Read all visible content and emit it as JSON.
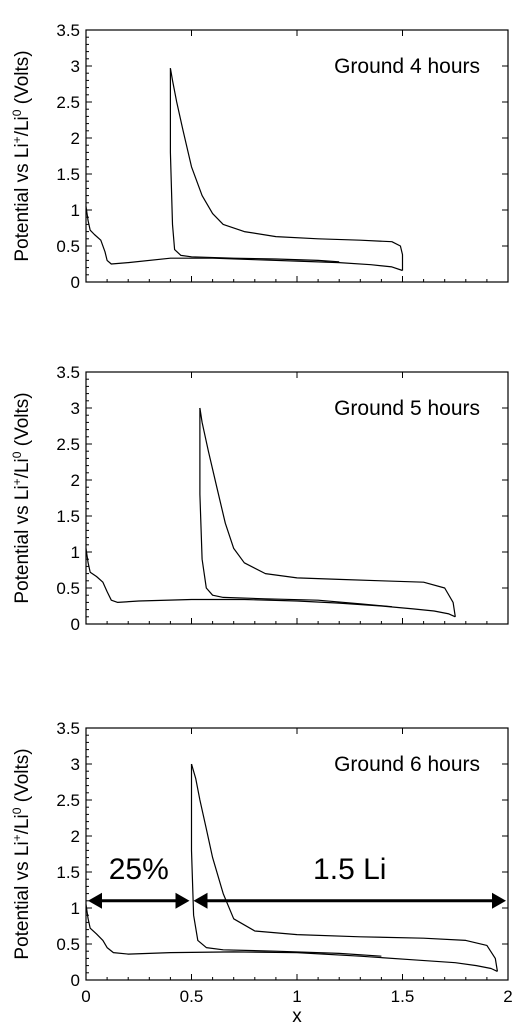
{
  "chart_data": [
    {
      "type": "line",
      "title": "Ground 4 hours",
      "ylabel_parts": {
        "base1": "Potential vs  Li",
        "sup1": "+",
        "mid": "/Li",
        "sup2": "0",
        "end": "  (Volts)"
      },
      "xlim": [
        0,
        2
      ],
      "ylim": [
        0,
        3.5
      ],
      "xticks": [
        0,
        0.5,
        1,
        1.5,
        2
      ],
      "yticks": [
        "0",
        "0.5",
        "1",
        "1.5",
        "2",
        "2.5",
        "3",
        "3.5"
      ],
      "ytick_values": [
        0,
        0.5,
        1,
        1.5,
        2,
        2.5,
        3,
        3.5
      ],
      "series": [
        {
          "points": [
            [
              0,
              1.05
            ],
            [
              0.01,
              0.85
            ],
            [
              0.02,
              0.72
            ],
            [
              0.04,
              0.66
            ],
            [
              0.07,
              0.58
            ],
            [
              0.09,
              0.42
            ],
            [
              0.1,
              0.3
            ],
            [
              0.12,
              0.25
            ],
            [
              0.2,
              0.27
            ],
            [
              0.4,
              0.33
            ],
            [
              0.6,
              0.33
            ],
            [
              0.8,
              0.31
            ],
            [
              1.0,
              0.29
            ],
            [
              1.2,
              0.27
            ],
            [
              1.35,
              0.24
            ],
            [
              1.45,
              0.21
            ],
            [
              1.5,
              0.16
            ]
          ]
        },
        {
          "points": [
            [
              1.5,
              0.16
            ],
            [
              1.5,
              0.38
            ],
            [
              1.49,
              0.5
            ],
            [
              1.45,
              0.56
            ],
            [
              1.3,
              0.58
            ],
            [
              1.1,
              0.6
            ],
            [
              0.9,
              0.63
            ],
            [
              0.75,
              0.7
            ],
            [
              0.65,
              0.8
            ],
            [
              0.6,
              0.95
            ],
            [
              0.55,
              1.2
            ],
            [
              0.5,
              1.6
            ],
            [
              0.46,
              2.1
            ],
            [
              0.43,
              2.5
            ],
            [
              0.41,
              2.8
            ],
            [
              0.4,
              2.97
            ]
          ]
        },
        {
          "points": [
            [
              0.4,
              2.97
            ],
            [
              0.4,
              1.8
            ],
            [
              0.41,
              0.8
            ],
            [
              0.42,
              0.45
            ],
            [
              0.45,
              0.37
            ],
            [
              0.5,
              0.35
            ],
            [
              0.7,
              0.33
            ],
            [
              0.9,
              0.32
            ],
            [
              1.1,
              0.3
            ],
            [
              1.2,
              0.28
            ]
          ]
        }
      ]
    },
    {
      "type": "line",
      "title": "Ground 5 hours",
      "ylabel_parts": {
        "base1": "Potential vs  Li",
        "sup1": "+",
        "mid": "/Li",
        "sup2": "0",
        "end": "  (Volts)"
      },
      "xlim": [
        0,
        2
      ],
      "ylim": [
        0,
        3.5
      ],
      "xticks": [
        0,
        0.5,
        1,
        1.5,
        2
      ],
      "yticks": [
        "0",
        "0.5",
        "1",
        "1.5",
        "2",
        "2.5",
        "3",
        "3.5"
      ],
      "ytick_values": [
        0,
        0.5,
        1,
        1.5,
        2,
        2.5,
        3,
        3.5
      ],
      "series": [
        {
          "points": [
            [
              0,
              1.05
            ],
            [
              0.01,
              0.85
            ],
            [
              0.02,
              0.72
            ],
            [
              0.05,
              0.66
            ],
            [
              0.08,
              0.58
            ],
            [
              0.1,
              0.45
            ],
            [
              0.12,
              0.33
            ],
            [
              0.15,
              0.3
            ],
            [
              0.25,
              0.32
            ],
            [
              0.5,
              0.34
            ],
            [
              0.75,
              0.34
            ],
            [
              1.0,
              0.32
            ],
            [
              1.2,
              0.29
            ],
            [
              1.4,
              0.25
            ],
            [
              1.55,
              0.21
            ],
            [
              1.65,
              0.18
            ],
            [
              1.72,
              0.14
            ],
            [
              1.75,
              0.1
            ]
          ]
        },
        {
          "points": [
            [
              1.75,
              0.1
            ],
            [
              1.74,
              0.3
            ],
            [
              1.7,
              0.5
            ],
            [
              1.6,
              0.58
            ],
            [
              1.4,
              0.6
            ],
            [
              1.2,
              0.62
            ],
            [
              1.0,
              0.64
            ],
            [
              0.85,
              0.7
            ],
            [
              0.75,
              0.85
            ],
            [
              0.7,
              1.05
            ],
            [
              0.66,
              1.4
            ],
            [
              0.62,
              1.9
            ],
            [
              0.58,
              2.4
            ],
            [
              0.55,
              2.8
            ],
            [
              0.54,
              3.0
            ]
          ]
        },
        {
          "points": [
            [
              0.54,
              3.0
            ],
            [
              0.54,
              1.8
            ],
            [
              0.55,
              0.9
            ],
            [
              0.57,
              0.5
            ],
            [
              0.6,
              0.4
            ],
            [
              0.65,
              0.37
            ],
            [
              0.85,
              0.35
            ],
            [
              1.1,
              0.33
            ],
            [
              1.3,
              0.28
            ],
            [
              1.45,
              0.24
            ]
          ]
        }
      ]
    },
    {
      "type": "line",
      "title": "Ground 6 hours",
      "xlabel": "x",
      "ylabel_parts": {
        "base1": "Potential vs  Li",
        "sup1": "+",
        "mid": "/Li",
        "sup2": "0",
        "end": "  (Volts)"
      },
      "xlim": [
        0,
        2
      ],
      "ylim": [
        0,
        3.5
      ],
      "xticks": [
        0,
        0.5,
        1,
        1.5,
        2
      ],
      "xtick_labels": [
        "0",
        "0.5",
        "1",
        "1.5",
        "2"
      ],
      "yticks": [
        "0",
        "0.5",
        "1",
        "1.5",
        "2",
        "2.5",
        "3",
        "3.5"
      ],
      "ytick_values": [
        0,
        0.5,
        1,
        1.5,
        2,
        2.5,
        3,
        3.5
      ],
      "series": [
        {
          "points": [
            [
              0,
              1.05
            ],
            [
              0.01,
              0.85
            ],
            [
              0.02,
              0.72
            ],
            [
              0.05,
              0.64
            ],
            [
              0.08,
              0.55
            ],
            [
              0.1,
              0.45
            ],
            [
              0.13,
              0.38
            ],
            [
              0.2,
              0.36
            ],
            [
              0.4,
              0.38
            ],
            [
              0.7,
              0.39
            ],
            [
              1.0,
              0.38
            ],
            [
              1.3,
              0.33
            ],
            [
              1.55,
              0.28
            ],
            [
              1.75,
              0.24
            ],
            [
              1.85,
              0.2
            ],
            [
              1.92,
              0.16
            ],
            [
              1.95,
              0.12
            ]
          ]
        },
        {
          "points": [
            [
              1.95,
              0.12
            ],
            [
              1.94,
              0.3
            ],
            [
              1.9,
              0.48
            ],
            [
              1.8,
              0.55
            ],
            [
              1.6,
              0.58
            ],
            [
              1.3,
              0.6
            ],
            [
              1.0,
              0.63
            ],
            [
              0.8,
              0.68
            ],
            [
              0.7,
              0.85
            ],
            [
              0.65,
              1.2
            ],
            [
              0.6,
              1.7
            ],
            [
              0.57,
              2.1
            ],
            [
              0.54,
              2.5
            ],
            [
              0.52,
              2.8
            ],
            [
              0.5,
              3.0
            ]
          ]
        },
        {
          "points": [
            [
              0.5,
              3.0
            ],
            [
              0.5,
              1.8
            ],
            [
              0.51,
              0.9
            ],
            [
              0.53,
              0.55
            ],
            [
              0.57,
              0.45
            ],
            [
              0.65,
              0.42
            ],
            [
              0.9,
              0.4
            ],
            [
              1.2,
              0.37
            ],
            [
              1.4,
              0.33
            ]
          ]
        }
      ],
      "annotations": [
        {
          "text": "25%",
          "from": 0,
          "to": 0.5,
          "y": 1.1
        },
        {
          "text": "1.5 Li",
          "from": 0.5,
          "to": 2.0,
          "y": 1.1
        }
      ]
    }
  ]
}
